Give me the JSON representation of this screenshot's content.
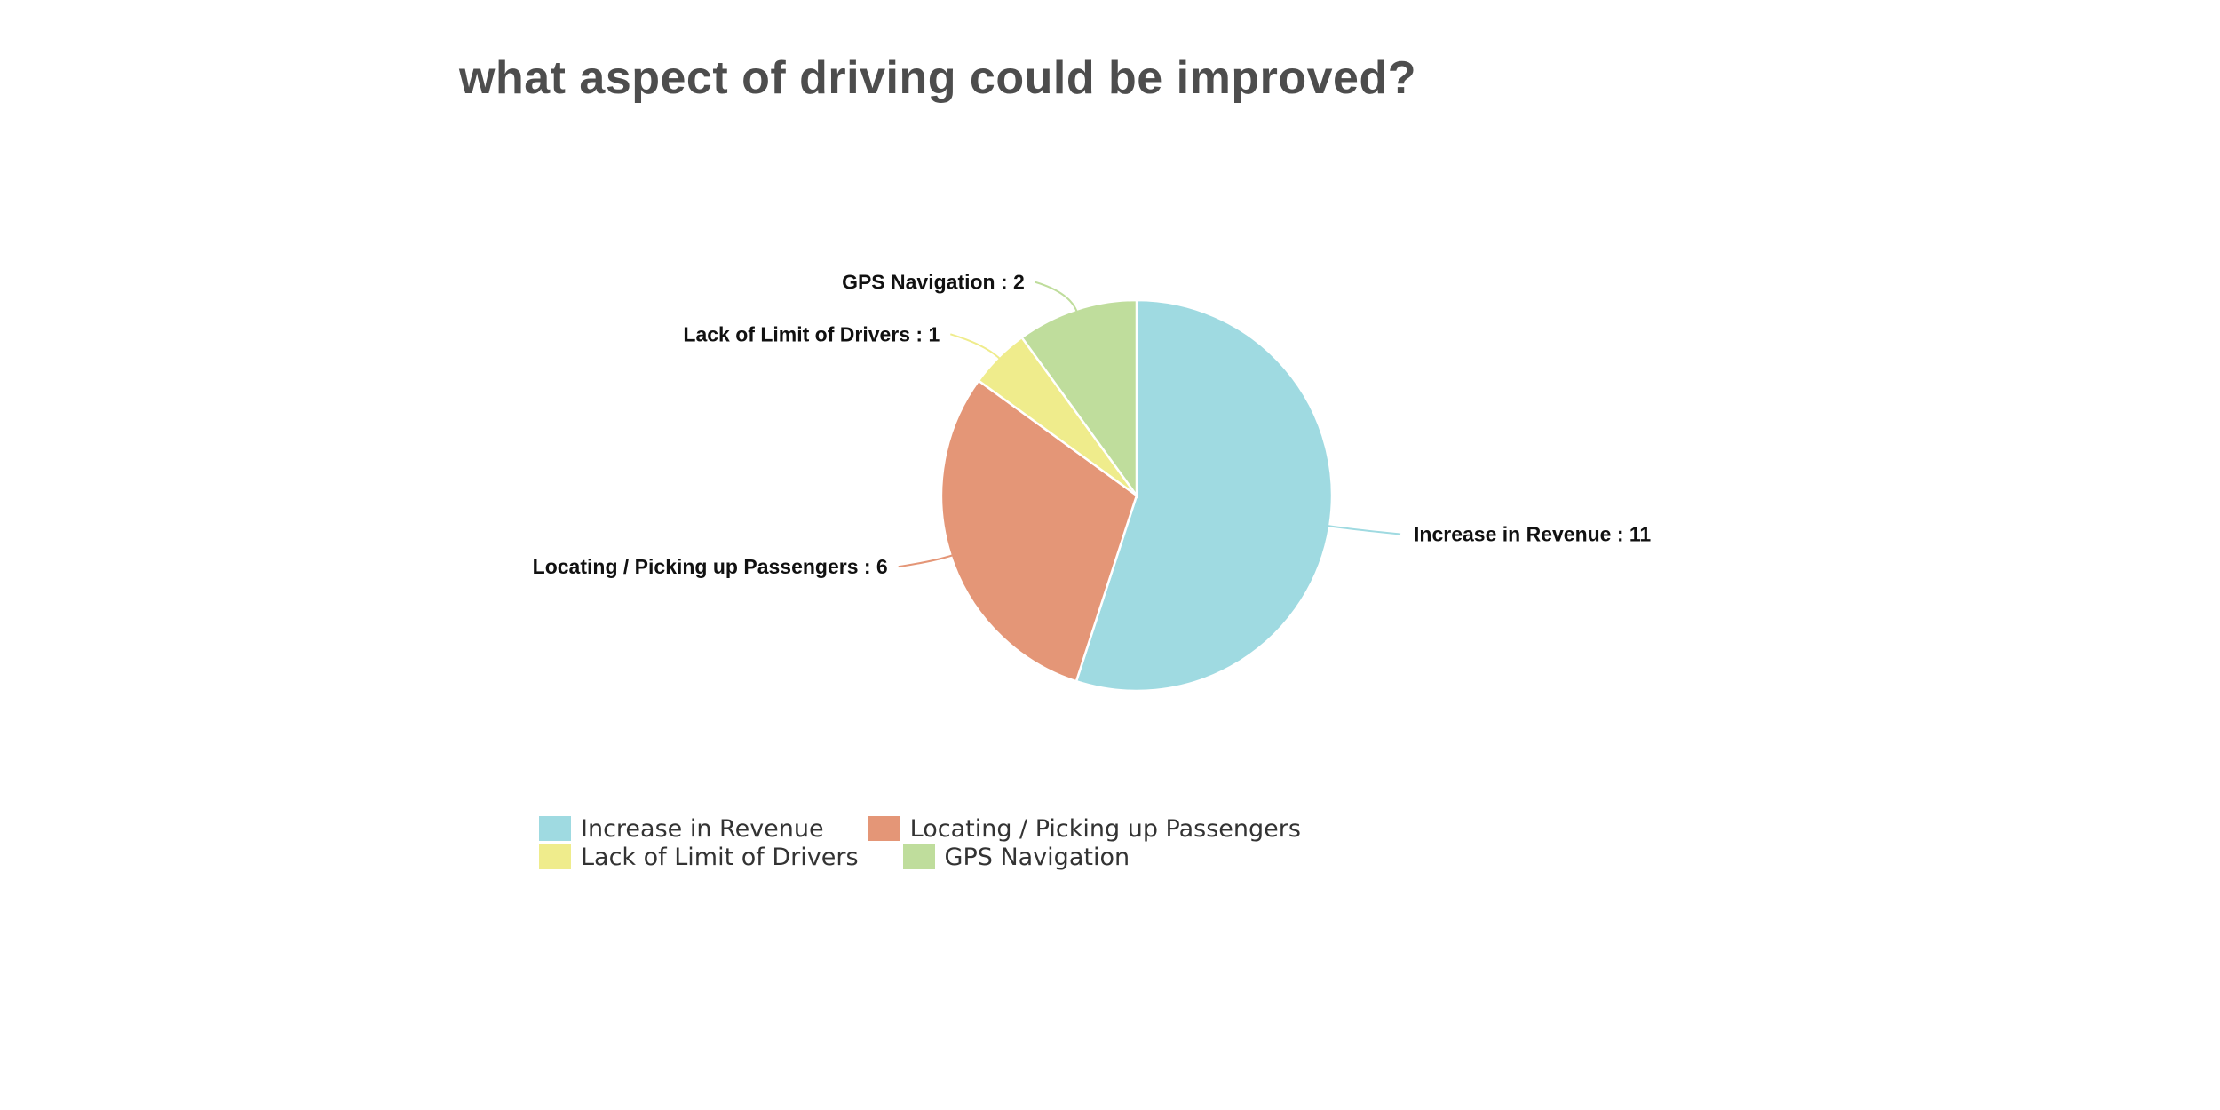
{
  "chart_data": {
    "type": "pie",
    "title": "what aspect of driving could be improved?",
    "slices": [
      {
        "label": "Increase in Revenue",
        "value": 11,
        "color": "#9fdae1",
        "data_label": "Increase in Revenue : 11"
      },
      {
        "label": "Locating / Picking up Passengers",
        "value": 6,
        "color": "#e49677",
        "data_label": "Locating / Picking up Passengers : 6"
      },
      {
        "label": "Lack of Limit of Drivers",
        "value": 1,
        "color": "#efec8c",
        "data_label": "Lack of Limit of Drivers : 1"
      },
      {
        "label": "GPS Navigation",
        "value": 2,
        "color": "#bfdd9c",
        "data_label": "GPS Navigation : 2"
      }
    ],
    "legend_position": "bottom"
  }
}
